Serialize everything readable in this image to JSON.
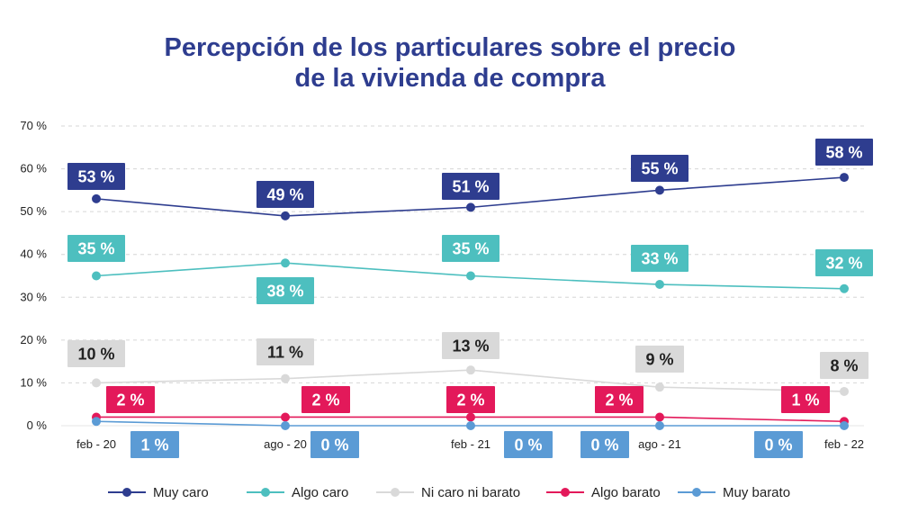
{
  "title_line1": "Percepción de los particulares sobre el precio",
  "title_line2": "de la vivienda de compra",
  "chart_data": {
    "type": "line",
    "title": "Percepción de los particulares sobre el precio de la vivienda de compra",
    "categories": [
      "feb - 20",
      "ago - 20",
      "feb - 21",
      "ago - 21",
      "feb - 22"
    ],
    "ylim": [
      0,
      70
    ],
    "yticks": [
      0,
      10,
      20,
      30,
      40,
      50,
      60,
      70
    ],
    "ytick_labels": [
      "0 %",
      "10 %",
      "20 %",
      "30 %",
      "40 %",
      "50 %",
      "60 %",
      "70 %"
    ],
    "grid": true,
    "legend_position": "bottom",
    "series": [
      {
        "name": "Muy caro",
        "color": "#2e3d8f",
        "values": [
          53,
          49,
          51,
          55,
          58
        ],
        "labels": [
          "53 %",
          "49 %",
          "51 %",
          "55 %",
          "58 %"
        ],
        "label_text_color": "#ffffff"
      },
      {
        "name": "Algo caro",
        "color": "#4dbfbf",
        "values": [
          35,
          38,
          35,
          33,
          32
        ],
        "labels": [
          "35 %",
          "38 %",
          "35 %",
          "33 %",
          "32 %"
        ],
        "label_text_color": "#ffffff"
      },
      {
        "name": "Ni caro ni barato",
        "color": "#d9d9d9",
        "values": [
          10,
          11,
          13,
          9,
          8
        ],
        "labels": [
          "10 %",
          "11 %",
          "13 %",
          "9 %",
          "8 %"
        ],
        "label_text_color": "#222222"
      },
      {
        "name": "Algo barato",
        "color": "#e3195a",
        "values": [
          2,
          2,
          2,
          2,
          1
        ],
        "labels": [
          "2 %",
          "2 %",
          "2 %",
          "2 %",
          "1 %"
        ],
        "label_text_color": "#ffffff"
      },
      {
        "name": "Muy barato",
        "color": "#5b9bd5",
        "values": [
          1,
          0,
          0,
          0,
          0
        ],
        "labels": [
          "1 %",
          "0 %",
          "0 %",
          "0 %",
          "0 %"
        ],
        "label_text_color": "#ffffff"
      }
    ]
  }
}
